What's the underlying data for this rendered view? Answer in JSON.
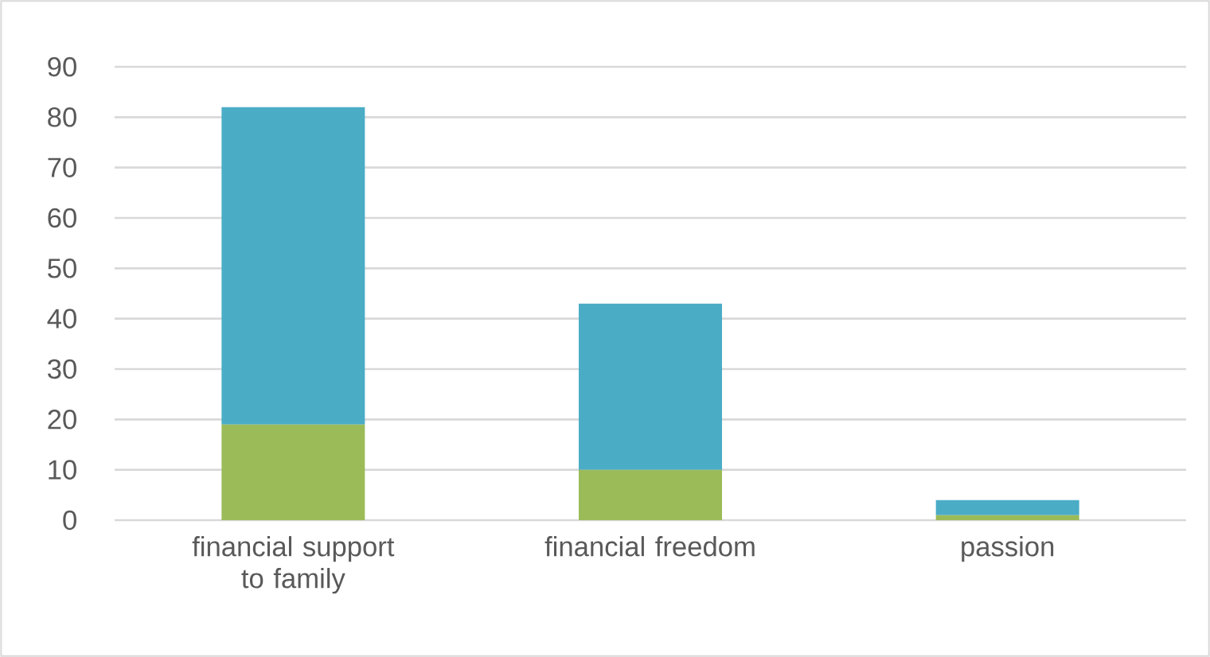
{
  "chart_data": {
    "type": "bar",
    "stacked": true,
    "categories": [
      "financial support to family",
      "financial freedom",
      "passion"
    ],
    "series": [
      {
        "color": "#9bbb59",
        "values": [
          19,
          10,
          1
        ]
      },
      {
        "color": "#4bacc6",
        "values": [
          63,
          33,
          3
        ]
      }
    ],
    "ylim": [
      0,
      90
    ],
    "yticks": [
      0,
      10,
      20,
      30,
      40,
      50,
      60,
      70,
      80,
      90
    ],
    "grid": "y"
  }
}
